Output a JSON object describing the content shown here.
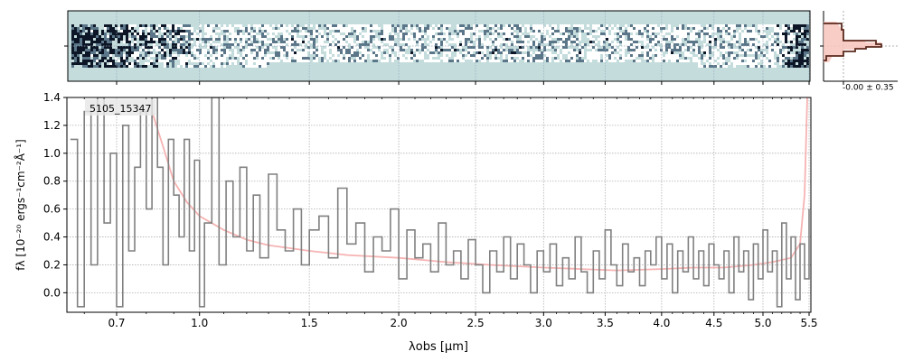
{
  "chart_data": [
    {
      "type": "heatmap",
      "panel": "2d-spectrum",
      "colormap": [
        "#ffffff",
        "#c4dcdc",
        "#5a7688",
        "#0c1626"
      ],
      "background_color": "#c4dcdc",
      "grid": true
    },
    {
      "type": "line",
      "panel": "cross-dispersion-profile",
      "annotation": "-0.00 ± 0.35",
      "series": [
        {
          "color": "#5a2a1e",
          "fill": "#f7c4bc"
        }
      ]
    },
    {
      "type": "line",
      "panel": "1d-spectrum",
      "label": "5105_15347",
      "xlabel": "λobs [μm]",
      "ylabel": "fλ [10⁻²⁰ ergs⁻¹cm⁻²Å⁻¹]",
      "x_scale": "nonlinear (approximately proportional to λ^0.4)",
      "xlim": [
        0.55,
        5.52
      ],
      "ylim": [
        -0.14,
        1.4
      ],
      "x_ticks": [
        "0.7",
        "1.0",
        "1.5",
        "2.0",
        "2.5",
        "3.0",
        "3.5",
        "4.0",
        "4.5",
        "5.0",
        "5.5"
      ],
      "x_tick_values": [
        0.7,
        1.0,
        1.5,
        2.0,
        2.5,
        3.0,
        3.5,
        4.0,
        4.5,
        5.0,
        5.5
      ],
      "y_ticks": [
        "0.0",
        "0.2",
        "0.4",
        "0.6",
        "0.8",
        "1.0",
        "1.2",
        "1.4"
      ],
      "y_tick_values": [
        0.0,
        0.2,
        0.4,
        0.6,
        0.8,
        1.0,
        1.2,
        1.4
      ],
      "grid": true,
      "series": [
        {
          "role": "flux",
          "color": "#808080",
          "points": [
            [
              0.56,
              1.1
            ],
            [
              0.58,
              -0.1
            ],
            [
              0.6,
              1.3
            ],
            [
              0.62,
              0.2
            ],
            [
              0.64,
              1.4
            ],
            [
              0.66,
              0.5
            ],
            [
              0.68,
              1.0
            ],
            [
              0.7,
              -0.1
            ],
            [
              0.72,
              1.2
            ],
            [
              0.74,
              0.3
            ],
            [
              0.76,
              0.9
            ],
            [
              0.78,
              1.3
            ],
            [
              0.8,
              0.6
            ],
            [
              0.82,
              1.4
            ],
            [
              0.84,
              0.9
            ],
            [
              0.86,
              0.2
            ],
            [
              0.88,
              1.1
            ],
            [
              0.9,
              0.7
            ],
            [
              0.92,
              0.4
            ],
            [
              0.94,
              1.1
            ],
            [
              0.96,
              0.3
            ],
            [
              0.98,
              0.95
            ],
            [
              1.0,
              -0.1
            ],
            [
              1.02,
              0.5
            ],
            [
              1.05,
              1.4
            ],
            [
              1.08,
              0.2
            ],
            [
              1.11,
              0.8
            ],
            [
              1.14,
              0.4
            ],
            [
              1.17,
              0.9
            ],
            [
              1.2,
              0.3
            ],
            [
              1.23,
              0.7
            ],
            [
              1.26,
              0.25
            ],
            [
              1.3,
              0.85
            ],
            [
              1.34,
              0.45
            ],
            [
              1.38,
              0.3
            ],
            [
              1.42,
              0.6
            ],
            [
              1.46,
              0.2
            ],
            [
              1.5,
              0.45
            ],
            [
              1.55,
              0.55
            ],
            [
              1.6,
              0.25
            ],
            [
              1.65,
              0.75
            ],
            [
              1.7,
              0.35
            ],
            [
              1.75,
              0.5
            ],
            [
              1.8,
              0.15
            ],
            [
              1.85,
              0.4
            ],
            [
              1.9,
              0.3
            ],
            [
              1.95,
              0.6
            ],
            [
              2.0,
              0.1
            ],
            [
              2.05,
              0.45
            ],
            [
              2.1,
              0.25
            ],
            [
              2.15,
              0.35
            ],
            [
              2.2,
              0.15
            ],
            [
              2.25,
              0.5
            ],
            [
              2.3,
              0.2
            ],
            [
              2.35,
              0.3
            ],
            [
              2.4,
              0.1
            ],
            [
              2.45,
              0.38
            ],
            [
              2.5,
              0.2
            ],
            [
              2.55,
              0.0
            ],
            [
              2.6,
              0.3
            ],
            [
              2.65,
              0.15
            ],
            [
              2.7,
              0.4
            ],
            [
              2.75,
              0.1
            ],
            [
              2.8,
              0.35
            ],
            [
              2.85,
              0.2
            ],
            [
              2.9,
              0.0
            ],
            [
              2.95,
              0.3
            ],
            [
              3.0,
              0.15
            ],
            [
              3.05,
              0.35
            ],
            [
              3.1,
              0.05
            ],
            [
              3.15,
              0.25
            ],
            [
              3.2,
              0.1
            ],
            [
              3.25,
              0.4
            ],
            [
              3.3,
              0.15
            ],
            [
              3.35,
              0.0
            ],
            [
              3.4,
              0.3
            ],
            [
              3.45,
              0.1
            ],
            [
              3.5,
              0.45
            ],
            [
              3.55,
              0.2
            ],
            [
              3.6,
              0.05
            ],
            [
              3.65,
              0.35
            ],
            [
              3.7,
              0.15
            ],
            [
              3.75,
              0.25
            ],
            [
              3.8,
              0.05
            ],
            [
              3.85,
              0.3
            ],
            [
              3.9,
              0.2
            ],
            [
              3.95,
              0.4
            ],
            [
              4.0,
              0.1
            ],
            [
              4.05,
              0.35
            ],
            [
              4.1,
              0.0
            ],
            [
              4.15,
              0.3
            ],
            [
              4.2,
              0.15
            ],
            [
              4.25,
              0.4
            ],
            [
              4.3,
              0.1
            ],
            [
              4.35,
              0.3
            ],
            [
              4.4,
              0.05
            ],
            [
              4.45,
              0.35
            ],
            [
              4.5,
              0.2
            ],
            [
              4.55,
              0.1
            ],
            [
              4.6,
              0.3
            ],
            [
              4.65,
              0.0
            ],
            [
              4.7,
              0.4
            ],
            [
              4.75,
              0.15
            ],
            [
              4.8,
              0.3
            ],
            [
              4.85,
              -0.05
            ],
            [
              4.9,
              0.35
            ],
            [
              4.95,
              0.1
            ],
            [
              5.0,
              0.45
            ],
            [
              5.05,
              0.15
            ],
            [
              5.1,
              0.3
            ],
            [
              5.15,
              -0.1
            ],
            [
              5.2,
              0.5
            ],
            [
              5.25,
              0.1
            ],
            [
              5.3,
              0.4
            ],
            [
              5.35,
              -0.05
            ],
            [
              5.4,
              0.35
            ],
            [
              5.45,
              0.1
            ],
            [
              5.5,
              0.6
            ]
          ]
        },
        {
          "role": "model",
          "color": "#f4a6a6",
          "points": [
            [
              0.82,
              1.3
            ],
            [
              0.86,
              1.05
            ],
            [
              0.9,
              0.8
            ],
            [
              0.95,
              0.65
            ],
            [
              1.0,
              0.55
            ],
            [
              1.1,
              0.45
            ],
            [
              1.2,
              0.38
            ],
            [
              1.3,
              0.34
            ],
            [
              1.4,
              0.32
            ],
            [
              1.5,
              0.3
            ],
            [
              1.7,
              0.27
            ],
            [
              2.0,
              0.25
            ],
            [
              2.3,
              0.22
            ],
            [
              2.6,
              0.2
            ],
            [
              3.0,
              0.18
            ],
            [
              3.3,
              0.17
            ],
            [
              3.6,
              0.16
            ],
            [
              4.0,
              0.17
            ],
            [
              4.3,
              0.18
            ],
            [
              4.6,
              0.18
            ],
            [
              4.9,
              0.2
            ],
            [
              5.1,
              0.22
            ],
            [
              5.3,
              0.25
            ],
            [
              5.4,
              0.35
            ],
            [
              5.45,
              0.7
            ],
            [
              5.48,
              1.4
            ]
          ]
        }
      ]
    }
  ]
}
